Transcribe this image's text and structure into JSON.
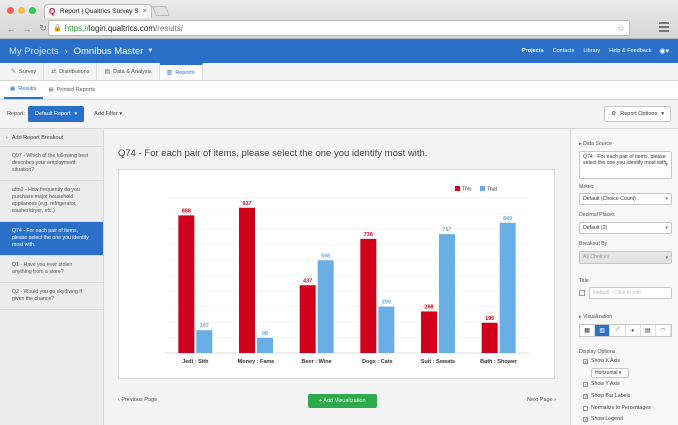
{
  "browser": {
    "tab_title": "Report | Qualtrics Survey S",
    "url_proto": "https://",
    "url_host": "login.qualtrics.com",
    "url_path": "/results/"
  },
  "header": {
    "breadcrumb_root": "My Projects",
    "project_name": "Omnibus Master",
    "links": [
      "Projects",
      "Contacts",
      "Library",
      "Help & Feedback"
    ]
  },
  "primary_tabs": [
    "Survey",
    "Distributions",
    "Data & Analysis",
    "Reports"
  ],
  "secondary_tabs": [
    "Results",
    "Printed Reports"
  ],
  "toolbar": {
    "report_label": "Report:",
    "report_value": "Default Report",
    "add_filter": "Add Filter",
    "report_options": "Report Options"
  },
  "sidebar": {
    "add_breakout": "Add Report Breakout",
    "items": [
      "Q97 - Which of the following best describes your employment situation?",
      "attn2 - How frequently do you purchase major household appliances (e.g. refrigerator, washer/dryer, etc.)",
      "Q74 - For each pair of items, please select the one you identify most with.",
      "Q1 - Have you ever stolen anything from a store?",
      "Q2 - Would you go skydiving if given the chance?"
    ]
  },
  "main": {
    "question_title": "Q74 - For each pair of items, please select the one you identify most with.",
    "prev": "Previous Page",
    "next": "Next Page",
    "add_viz": "+ Add Visualization"
  },
  "chart_data": {
    "type": "bar",
    "categories": [
      "Jedi : Sith",
      "Money : Fame",
      "Beer : Wine",
      "Dogs : Cats",
      "Suit : Sweats",
      "Bath : Shower"
    ],
    "series": [
      {
        "name": "This",
        "values": [
          888,
          937,
          437,
          736,
          268,
          195
        ],
        "color": "#d0021b"
      },
      {
        "name": "That",
        "values": [
          147,
          98,
          598,
          299,
          767,
          840
        ],
        "color": "#6aaee6"
      }
    ],
    "ylim": [
      0,
      1000
    ],
    "legend": "top-right",
    "show_bar_labels": true
  },
  "right_panel": {
    "data_source_label": "Data Source",
    "data_source_value": "Q74 - For each pair of items, please select the one you identify most with.",
    "metric_label": "Metric",
    "metric_value": "Default (Choice Count)",
    "decimal_label": "Decimal Places",
    "decimal_value": "Default (2)",
    "breakout_label": "Breakout By",
    "breakout_value": "All Choices",
    "title_label": "Title",
    "title_placeholder": "Default - Click to edit",
    "viz_label": "Visualization",
    "display_label": "Display Options",
    "show_x_axis": "Show X Axis",
    "orientation": "Horizontal",
    "show_y_axis": "Show Y Axis",
    "show_bar_labels": "Show Bar Labels",
    "normalize": "Normalize to Percentages",
    "show_legend": "Show Legend"
  },
  "colors": {
    "brand_blue": "#2a70c9",
    "this_red": "#d0021b",
    "that_blue": "#6aaee6",
    "add_green": "#2eaa4a"
  }
}
